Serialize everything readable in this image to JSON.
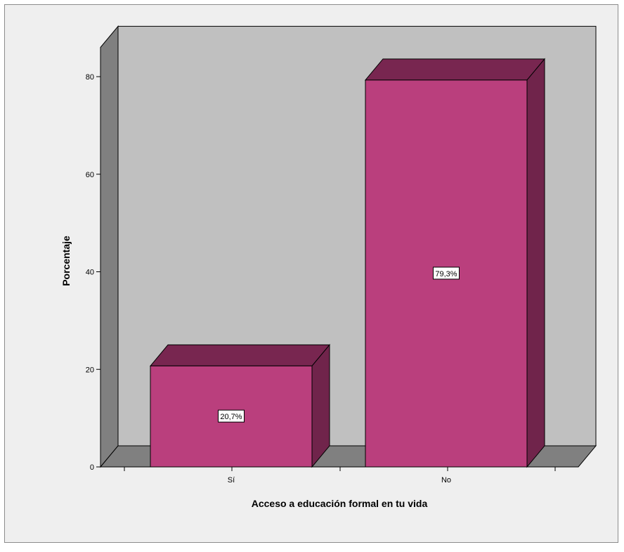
{
  "chart_data": {
    "type": "bar",
    "style": "3d",
    "categories": [
      "Sí",
      "No"
    ],
    "values": [
      20.7,
      79.3
    ],
    "data_labels": [
      "20,7%",
      "79,3%"
    ],
    "title": "",
    "xlabel": "Acceso a educación formal en tu vida",
    "ylabel": "Porcentaje",
    "ylim": [
      0,
      86
    ],
    "yticks": [
      0,
      20,
      40,
      60,
      80
    ],
    "grid": false,
    "colors": {
      "bar_front": "#ba3f7d",
      "bar_top": "#782650",
      "bar_side": "#70244b",
      "back_wall": "#c0c0c0",
      "side_wall": "#808080",
      "floor": "#808080",
      "frame_bg": "#efefef"
    }
  }
}
